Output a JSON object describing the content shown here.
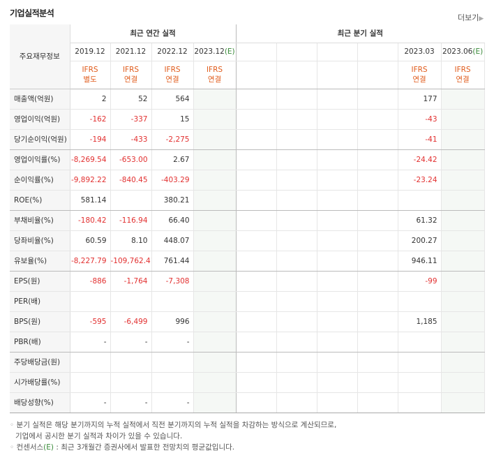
{
  "title": "기업실적분석",
  "more_label": "더보기",
  "header": {
    "row_label": "주요재무정보",
    "annual_group": "최근 연간 실적",
    "quarter_group": "최근 분기 실적",
    "periods": [
      "2019.12",
      "2021.12",
      "2022.12",
      "2023.12",
      "",
      "",
      "",
      "",
      "2023.03",
      "2023.06"
    ],
    "estimate_mark": "(E)",
    "ifrs": [
      [
        "IFRS",
        "별도"
      ],
      [
        "IFRS",
        "연결"
      ],
      [
        "IFRS",
        "연결"
      ],
      [
        "IFRS",
        "연결"
      ],
      [
        "",
        ""
      ],
      [
        "",
        ""
      ],
      [
        "",
        ""
      ],
      [
        "",
        ""
      ],
      [
        "IFRS",
        "연결"
      ],
      [
        "IFRS",
        "연결"
      ]
    ]
  },
  "rows": [
    {
      "label": "매출액(억원)",
      "values": [
        "2",
        "52",
        "564",
        "",
        "",
        "",
        "",
        "",
        "177",
        ""
      ]
    },
    {
      "label": "영업이익(억원)",
      "values": [
        "-162",
        "-337",
        "15",
        "",
        "",
        "",
        "",
        "",
        "-43",
        ""
      ]
    },
    {
      "label": "당기순이익(억원)",
      "values": [
        "-194",
        "-433",
        "-2,275",
        "",
        "",
        "",
        "",
        "",
        "-41",
        ""
      ]
    },
    {
      "label": "영업이익률(%)",
      "values": [
        "-8,269.54",
        "-653.00",
        "2.67",
        "",
        "",
        "",
        "",
        "",
        "-24.42",
        ""
      ]
    },
    {
      "label": "순이익률(%)",
      "values": [
        "-9,892.22",
        "-840.45",
        "-403.29",
        "",
        "",
        "",
        "",
        "",
        "-23.24",
        ""
      ]
    },
    {
      "label": "ROE(%)",
      "values": [
        "581.14",
        "",
        "380.21",
        "",
        "",
        "",
        "",
        "",
        "",
        ""
      ]
    },
    {
      "label": "부채비율(%)",
      "values": [
        "-180.42",
        "-116.94",
        "66.40",
        "",
        "",
        "",
        "",
        "",
        "61.32",
        ""
      ]
    },
    {
      "label": "당좌비율(%)",
      "values": [
        "60.59",
        "8.10",
        "448.07",
        "",
        "",
        "",
        "",
        "",
        "200.27",
        ""
      ]
    },
    {
      "label": "유보율(%)",
      "values": [
        "-8,227.79",
        "-109,762.41",
        "761.44",
        "",
        "",
        "",
        "",
        "",
        "946.11",
        ""
      ]
    },
    {
      "label": "EPS(원)",
      "values": [
        "-886",
        "-1,764",
        "-7,308",
        "",
        "",
        "",
        "",
        "",
        "-99",
        ""
      ]
    },
    {
      "label": "PER(배)",
      "values": [
        "",
        "",
        "",
        "",
        "",
        "",
        "",
        "",
        "",
        ""
      ]
    },
    {
      "label": "BPS(원)",
      "values": [
        "-595",
        "-6,499",
        "996",
        "",
        "",
        "",
        "",
        "",
        "1,185",
        ""
      ]
    },
    {
      "label": "PBR(배)",
      "values": [
        "-",
        "-",
        "-",
        "",
        "",
        "",
        "",
        "",
        "",
        ""
      ]
    },
    {
      "label": "주당배당금(원)",
      "values": [
        "",
        "",
        "",
        "",
        "",
        "",
        "",
        "",
        "",
        ""
      ]
    },
    {
      "label": "시가배당률(%)",
      "values": [
        "",
        "",
        "",
        "",
        "",
        "",
        "",
        "",
        "",
        ""
      ]
    },
    {
      "label": "배당성향(%)",
      "values": [
        "-",
        "-",
        "-",
        "",
        "",
        "",
        "",
        "",
        "",
        ""
      ]
    }
  ],
  "notes": {
    "line1": "분기 실적은 해당 분기까지의 누적 실적에서 직전 분기까지의 누적 실적을 차감하는 방식으로 계산되므로,",
    "line2": "기업에서 공시한 분기 실적과 차이가 있을 수 있습니다.",
    "line3_prefix": "컨센서스",
    "line3_mark": "(E)",
    "line3_suffix": " : 최근 3개월간 증권사에서 발표한 전망치의 평균값입니다."
  },
  "colors": {
    "negative": "#e23030",
    "ifrs": "#e05b1b",
    "estimate": "#3a8a3a"
  }
}
